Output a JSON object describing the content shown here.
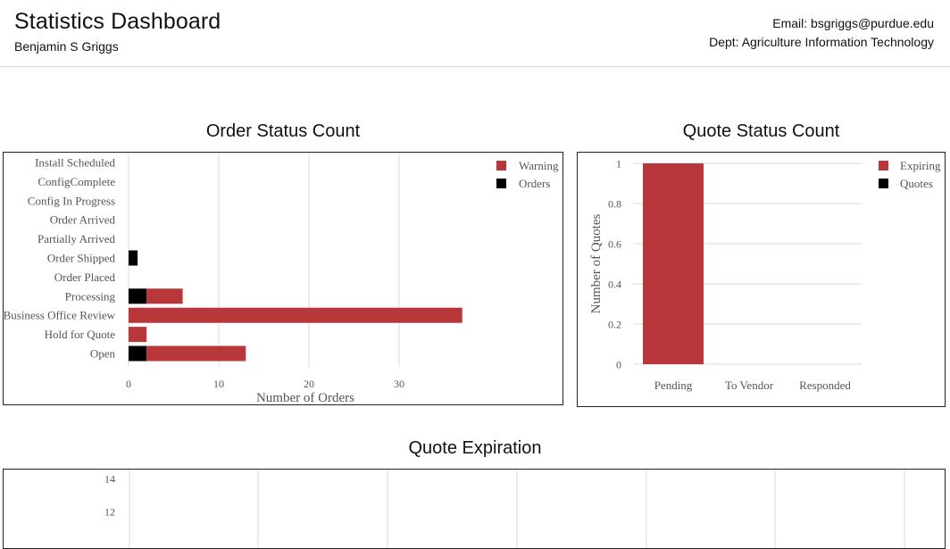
{
  "header": {
    "title": "Statistics Dashboard",
    "user_name": "Benjamin S Griggs",
    "email": "Email: bsgriggs@purdue.edu",
    "dept": "Dept: Agriculture Information Technology"
  },
  "colors": {
    "warning": "#b8373a",
    "orders": "#000000",
    "grid": "#d9d9d9"
  },
  "chart_data": [
    {
      "type": "bar",
      "orientation": "horizontal",
      "stacked": true,
      "title": "Order Status Count",
      "xlabel": "Number of Orders",
      "ylabel": "",
      "xlim": [
        0,
        40
      ],
      "xticks": [
        0,
        10,
        20,
        30
      ],
      "grid": true,
      "legend_position": "top-right",
      "categories": [
        "Install Scheduled",
        "ConfigComplete",
        "Config In Progress",
        "Order Arrived",
        "Partially Arrived",
        "Order Shipped",
        "Order Placed",
        "Processing",
        "Business Office Review",
        "Hold for Quote",
        "Open"
      ],
      "series": [
        {
          "name": "Orders",
          "color": "#000000",
          "values": [
            0,
            0,
            0,
            0,
            0,
            1,
            0,
            2,
            0,
            0,
            2
          ]
        },
        {
          "name": "Warning",
          "color": "#b8373a",
          "values": [
            0,
            0,
            0,
            0,
            0,
            0,
            0,
            4,
            37,
            2,
            11
          ]
        }
      ],
      "legend": [
        "Warning",
        "Orders"
      ]
    },
    {
      "type": "bar",
      "stacked": true,
      "title": "Quote Status Count",
      "xlabel": "",
      "ylabel": "Number of Quotes",
      "ylim": [
        0,
        1
      ],
      "yticks": [
        "0",
        "0.2",
        "0.4",
        "0.6",
        "0.8",
        "1"
      ],
      "grid": true,
      "legend_position": "top-right",
      "categories": [
        "Pending",
        "To Vendor",
        "Responded"
      ],
      "series": [
        {
          "name": "Quotes",
          "color": "#000000",
          "values": [
            0,
            0,
            0
          ]
        },
        {
          "name": "Expiring",
          "color": "#b8373a",
          "values": [
            1,
            0,
            0
          ]
        }
      ],
      "legend": [
        "Expiring",
        "Quotes"
      ]
    },
    {
      "type": "bar",
      "title": "Quote Expiration",
      "xlabel": "",
      "ylabel": "",
      "ylim": [
        0,
        14
      ],
      "yticks": [
        "14",
        "12"
      ],
      "grid": true,
      "categories": [],
      "series": []
    }
  ]
}
